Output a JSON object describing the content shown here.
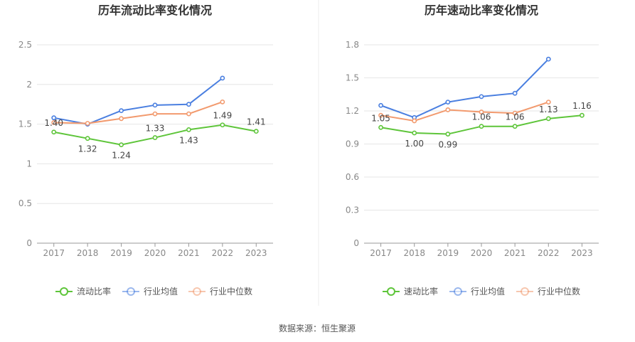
{
  "source": "数据来源：恒生聚源",
  "chart_data": [
    {
      "type": "line",
      "title": "历年流动比率变化情况",
      "categories": [
        "2017",
        "2018",
        "2019",
        "2020",
        "2021",
        "2022",
        "2023"
      ],
      "ylim": [
        0,
        2.5
      ],
      "yticks": [
        "0",
        "0.5",
        "1",
        "1.5",
        "2",
        "2.5"
      ],
      "grid": true,
      "legend_position": "bottom",
      "series": [
        {
          "name": "流动比率",
          "color": "#5ec53a",
          "values": [
            1.4,
            1.32,
            1.24,
            1.33,
            1.43,
            1.49,
            1.41
          ],
          "labels": [
            "1.40",
            "1.32",
            "1.24",
            "1.33",
            "1.43",
            "1.49",
            "1.41"
          ]
        },
        {
          "name": "行业均值",
          "color": "#4a7fe0",
          "values": [
            1.58,
            1.5,
            1.67,
            1.74,
            1.75,
            2.08,
            null
          ]
        },
        {
          "name": "行业中位数",
          "color": "#f29a6e",
          "values": [
            1.52,
            1.51,
            1.57,
            1.63,
            1.63,
            1.78,
            null
          ]
        }
      ]
    },
    {
      "type": "line",
      "title": "历年速动比率变化情况",
      "categories": [
        "2017",
        "2018",
        "2019",
        "2020",
        "2021",
        "2022",
        "2023"
      ],
      "ylim": [
        0,
        1.8
      ],
      "yticks": [
        "0",
        "0.3",
        "0.6",
        "0.9",
        "1.2",
        "1.5",
        "1.8"
      ],
      "grid": true,
      "legend_position": "bottom",
      "series": [
        {
          "name": "速动比率",
          "color": "#5ec53a",
          "values": [
            1.05,
            1.0,
            0.99,
            1.06,
            1.06,
            1.13,
            1.16
          ],
          "labels": [
            "1.05",
            "1.00",
            "0.99",
            "1.06",
            "1.06",
            "1.13",
            "1.16"
          ]
        },
        {
          "name": "行业均值",
          "color": "#4a7fe0",
          "values": [
            1.25,
            1.14,
            1.28,
            1.33,
            1.36,
            1.67,
            null
          ]
        },
        {
          "name": "行业中位数",
          "color": "#f29a6e",
          "values": [
            1.16,
            1.11,
            1.21,
            1.19,
            1.18,
            1.28,
            null
          ]
        }
      ]
    }
  ]
}
